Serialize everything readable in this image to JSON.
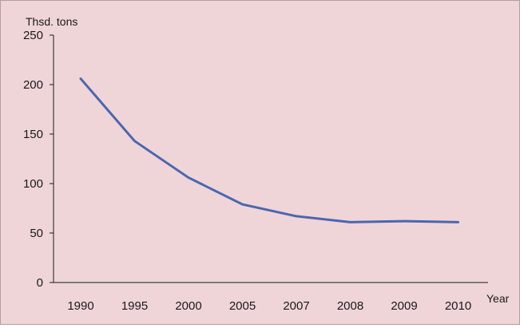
{
  "chart_data": {
    "type": "line",
    "ylabel": "Thsd. tons",
    "xlabel": "Year",
    "categories": [
      "1990",
      "1995",
      "2000",
      "2005",
      "2007",
      "2008",
      "2009",
      "2010"
    ],
    "series": [
      {
        "values": [
          206,
          143,
          106,
          79,
          67,
          61,
          62,
          61
        ],
        "color": "#4a66b0"
      }
    ],
    "ylim": [
      0,
      250
    ],
    "yticks": [
      0,
      50,
      100,
      150,
      200,
      250
    ],
    "grid": false,
    "legend": "none",
    "background": "#efd5d7",
    "axis_color": "#1a1a1a"
  }
}
